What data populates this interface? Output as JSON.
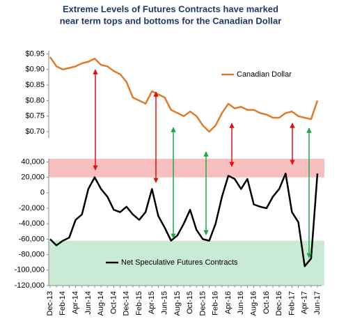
{
  "chart_data": [
    {
      "type": "line",
      "title": [
        "Extreme Levels of Futures Contracts have marked",
        "near term tops and bottoms for the Canadian Dollar"
      ],
      "series": [
        {
          "name": "Canadian Dollar",
          "color": "#e07b2a",
          "values": [
            0.94,
            0.91,
            0.9,
            0.905,
            0.91,
            0.92,
            0.925,
            0.935,
            0.915,
            0.91,
            0.895,
            0.885,
            0.86,
            0.81,
            0.8,
            0.79,
            0.83,
            0.82,
            0.81,
            0.77,
            0.76,
            0.75,
            0.765,
            0.75,
            0.72,
            0.7,
            0.72,
            0.76,
            0.79,
            0.775,
            0.78,
            0.77,
            0.77,
            0.76,
            0.755,
            0.745,
            0.745,
            0.76,
            0.765,
            0.75,
            0.745,
            0.74,
            0.8
          ]
        }
      ],
      "ylim": [
        0.68,
        0.96
      ],
      "yticks": [
        {
          "value": 0.7,
          "label": "$0.70"
        },
        {
          "value": 0.75,
          "label": "$0.75"
        },
        {
          "value": 0.8,
          "label": "$0.80"
        },
        {
          "value": 0.85,
          "label": "$0.85"
        },
        {
          "value": 0.9,
          "label": "$0.90"
        },
        {
          "value": 0.95,
          "label": "$0.95"
        }
      ],
      "grid": false,
      "legend": "upper right"
    },
    {
      "type": "line",
      "categories": [
        "Dec-13",
        null,
        "Feb-14",
        null,
        "Apr-14",
        null,
        "Jun-14",
        null,
        "Aug-14",
        null,
        "Oct-14",
        null,
        "Dec-14",
        null,
        "Feb-15",
        null,
        "Apr-15",
        null,
        "Jun-15",
        null,
        "Aug-15",
        null,
        "Oct-15",
        null,
        "Dec-15",
        null,
        "Feb-16",
        null,
        "Apr-16",
        null,
        "Jun-16",
        null,
        "Aug-16",
        null,
        "Oct-16",
        null,
        "Dec-16",
        null,
        "Feb-17",
        null,
        "Apr-17",
        null,
        "Jun-17"
      ],
      "series": [
        {
          "name": "Net Speculative Futures Contracts",
          "color": "#000000",
          "values": [
            -60000,
            -68000,
            -62000,
            -58000,
            -35000,
            -28000,
            5000,
            20000,
            5000,
            -5000,
            -22000,
            -25000,
            -18000,
            -28000,
            -35000,
            -25000,
            5000,
            -30000,
            -45000,
            -62000,
            -55000,
            -40000,
            -22000,
            -48000,
            -60000,
            -62000,
            -40000,
            -5000,
            22000,
            18000,
            5000,
            18000,
            -15000,
            -18000,
            -20000,
            -5000,
            5000,
            25000,
            -25000,
            -38000,
            -95000,
            -85000,
            25000
          ]
        }
      ],
      "ylim": [
        -120000,
        44000
      ],
      "yticks": [
        {
          "value": -120000,
          "label": "-120,000"
        },
        {
          "value": -100000,
          "label": "-100,000"
        },
        {
          "value": -80000,
          "label": "-80,000"
        },
        {
          "value": -60000,
          "label": "-60,000"
        },
        {
          "value": -40000,
          "label": "-40,000"
        },
        {
          "value": -20000,
          "label": "-20,000"
        },
        0,
        {
          "value": 20000,
          "label": "20,000"
        },
        {
          "value": 40000,
          "label": "40,000"
        }
      ],
      "bands": [
        {
          "from": 20000,
          "to": 44000,
          "color": "#f7b4b4"
        },
        {
          "from": -120000,
          "to": -62000,
          "color": "#bfe8cb"
        }
      ],
      "grid": false,
      "legend": "lower center"
    }
  ]
}
